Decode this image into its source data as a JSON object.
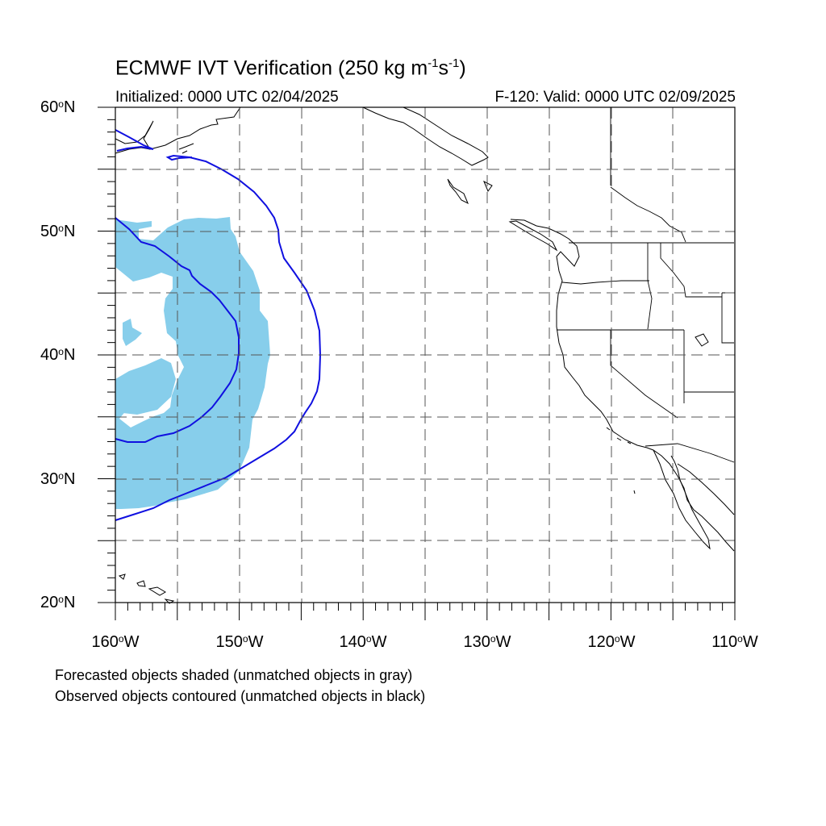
{
  "title": {
    "prefix": "ECMWF IVT Verification (250 kg m",
    "exp1": "-1",
    "mid": "s",
    "exp2": "-1",
    "suffix": ")"
  },
  "initialized": "Initialized: 0000 UTC 02/04/2025",
  "valid": "F-120: Valid: 0000 UTC 02/09/2025",
  "lat_labels": [
    {
      "value": "60",
      "hemi": "N"
    },
    {
      "value": "50",
      "hemi": "N"
    },
    {
      "value": "40",
      "hemi": "N"
    },
    {
      "value": "30",
      "hemi": "N"
    },
    {
      "value": "20",
      "hemi": "N"
    }
  ],
  "lon_labels": [
    {
      "value": "160",
      "hemi": "W"
    },
    {
      "value": "150",
      "hemi": "W"
    },
    {
      "value": "140",
      "hemi": "W"
    },
    {
      "value": "130",
      "hemi": "W"
    },
    {
      "value": "120",
      "hemi": "W"
    },
    {
      "value": "110",
      "hemi": "W"
    }
  ],
  "degree_symbol": "o",
  "legend": {
    "line1": "Forecasted objects shaded (unmatched objects in gray)",
    "line2": "Observed objects contoured (unmatched objects in black)"
  },
  "colors": {
    "forecast_fill": "#87ceeb",
    "observed_contour": "#1010e0",
    "coastline": "#000000",
    "grid": "#555555"
  },
  "map_extent": {
    "lon_min": -160,
    "lon_max": -110,
    "lat_min": 20,
    "lat_max": 60
  }
}
